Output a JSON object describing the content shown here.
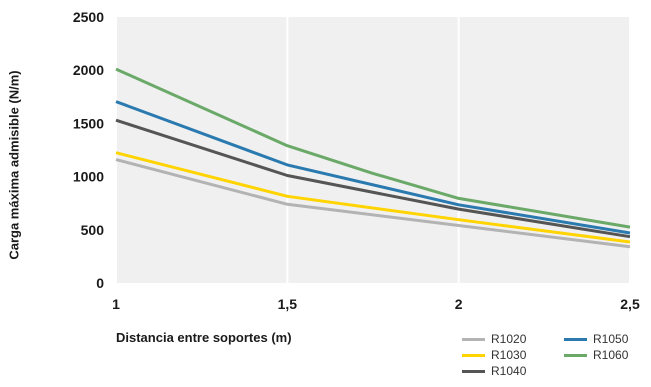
{
  "chart_data": {
    "type": "line",
    "xlabel": "Distancia entre soportes (m)",
    "ylabel": "Carga máxima admisible (N/m)",
    "x": [
      1,
      1.5,
      2,
      2.5
    ],
    "x_tick_labels": [
      "1",
      "1,5",
      "2",
      "2,5"
    ],
    "y_ticks": [
      0,
      500,
      1000,
      1500,
      2000,
      2500
    ],
    "xlim": [
      1,
      2.5
    ],
    "ylim": [
      0,
      2500
    ],
    "grid": "vertical",
    "legend_position": "bottom-right",
    "series": [
      {
        "name": "R1020",
        "color": "#b3b3b3",
        "x": [
          1,
          1.5,
          2,
          2.5
        ],
        "values": [
          1160,
          740,
          540,
          340
        ]
      },
      {
        "name": "R1030",
        "color": "#ffd400",
        "x": [
          1,
          1.5,
          2,
          2.5
        ],
        "values": [
          1225,
          815,
          595,
          385
        ]
      },
      {
        "name": "R1040",
        "color": "#555555",
        "x": [
          1,
          1.5,
          2,
          2.5
        ],
        "values": [
          1530,
          1010,
          695,
          435
        ]
      },
      {
        "name": "R1050",
        "color": "#2a7ab0",
        "x": [
          1,
          1.5,
          2,
          2.5
        ],
        "values": [
          1705,
          1110,
          735,
          470
        ]
      },
      {
        "name": "R1060",
        "color": "#6aa968",
        "x": [
          1,
          1.5,
          1.75,
          2,
          2.5
        ],
        "values": [
          2010,
          1290,
          1030,
          795,
          525
        ]
      }
    ]
  }
}
